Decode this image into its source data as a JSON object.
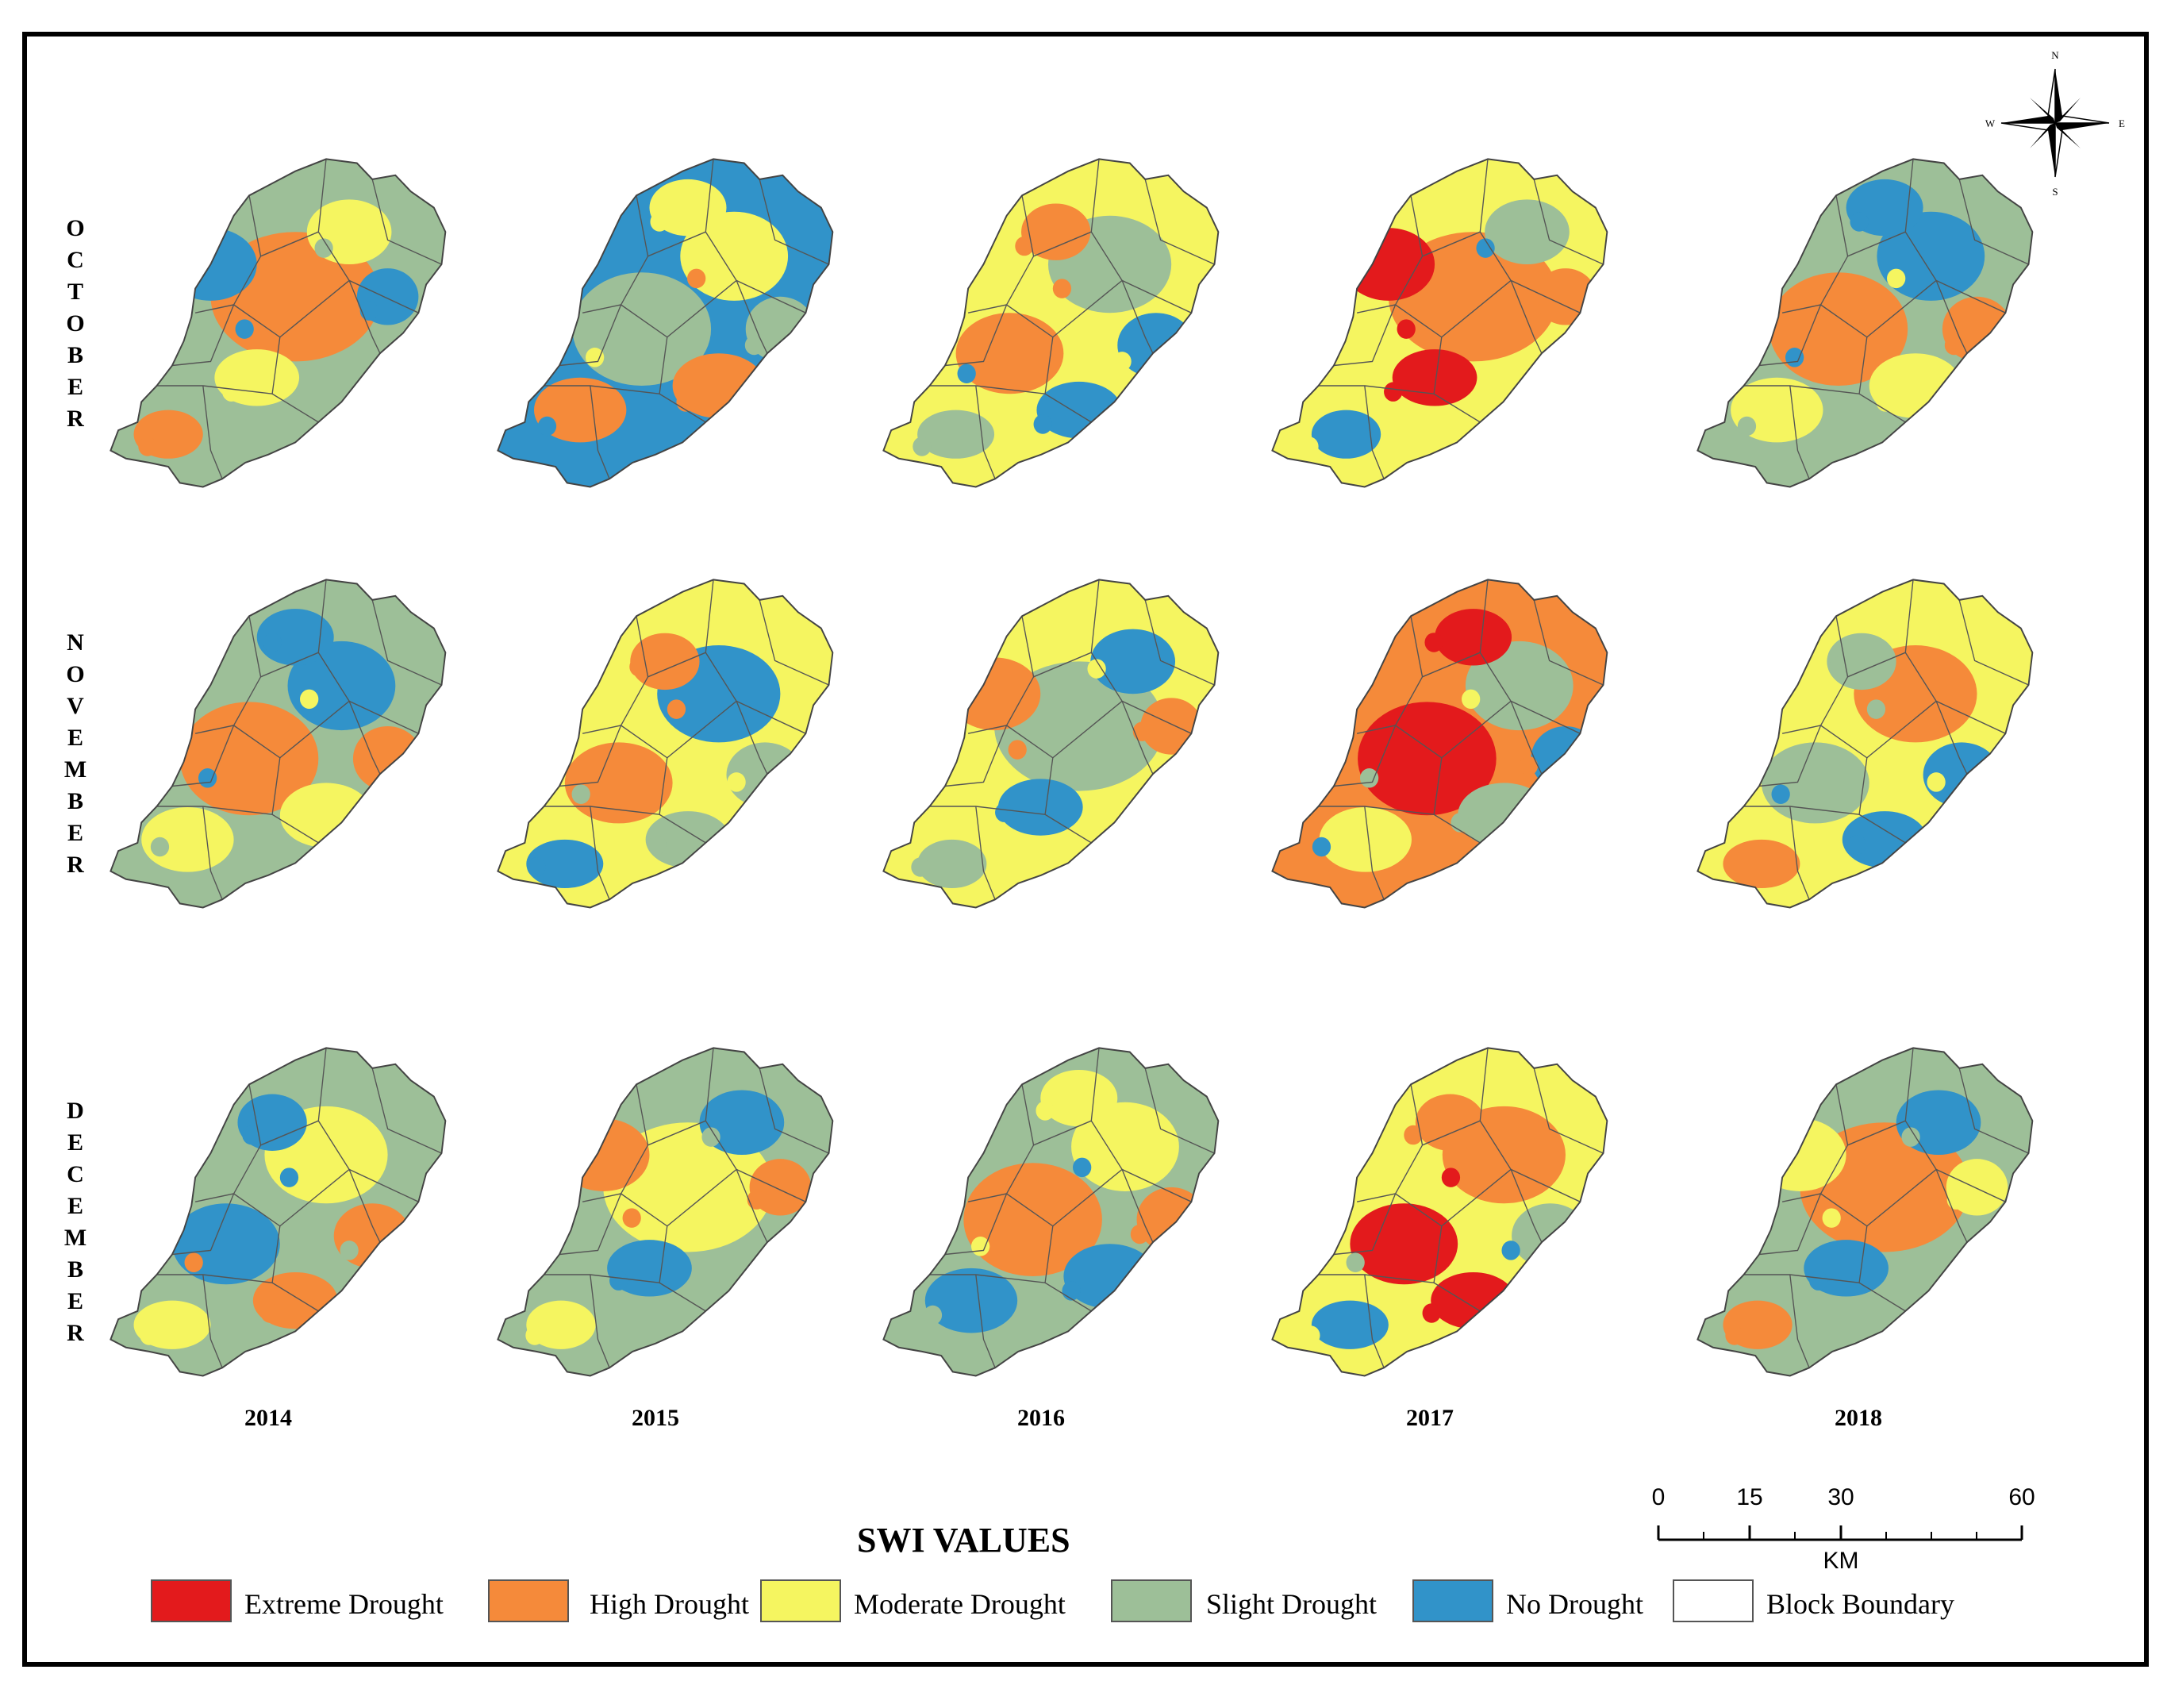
{
  "rows": [
    {
      "label": [
        "O",
        "C",
        "T",
        "O",
        "B",
        "E",
        "R"
      ],
      "month": "OCTOBER"
    },
    {
      "label": [
        "N",
        "O",
        "V",
        "E",
        "M",
        "B",
        "E",
        "R"
      ],
      "month": "NOVEMBER"
    },
    {
      "label": [
        "D",
        "E",
        "C",
        "E",
        "M",
        "B",
        "E",
        "R"
      ],
      "month": "DECEMBER"
    }
  ],
  "years": [
    "2014",
    "2015",
    "2016",
    "2017",
    "2018"
  ],
  "legend": {
    "title": "SWI  VALUES",
    "items": [
      {
        "label": "Extreme Drought",
        "color": "#e31a1c"
      },
      {
        "label": "High Drought",
        "color": "#f58a3a"
      },
      {
        "label": "Moderate Drought",
        "color": "#f5f560"
      },
      {
        "label": "Slight Drought",
        "color": "#9dbf98"
      },
      {
        "label": "No Drought",
        "color": "#3193c9"
      },
      {
        "label": "Block Boundary",
        "color": "#ffffff"
      }
    ]
  },
  "scale": {
    "ticks": [
      "0",
      "15",
      "30",
      "60"
    ],
    "unit": "KM"
  },
  "compass": {
    "n": "N",
    "s": "S",
    "e": "E",
    "w": "W"
  },
  "drought_levels": {
    "OCTOBER": {
      "2014": [
        "slight",
        "high",
        "no",
        "moderate"
      ],
      "2015": [
        "no",
        "slight",
        "moderate",
        "high"
      ],
      "2016": [
        "moderate",
        "slight",
        "high",
        "no"
      ],
      "2017": [
        "moderate",
        "high",
        "extreme",
        "slight",
        "no"
      ],
      "2018": [
        "slight",
        "high",
        "no",
        "moderate"
      ]
    },
    "NOVEMBER": {
      "2014": [
        "slight",
        "high",
        "no",
        "moderate"
      ],
      "2015": [
        "moderate",
        "no",
        "high",
        "slight"
      ],
      "2016": [
        "moderate",
        "slight",
        "high",
        "no"
      ],
      "2017": [
        "high",
        "extreme",
        "slight",
        "moderate",
        "no"
      ],
      "2018": [
        "moderate",
        "high",
        "slight",
        "no"
      ]
    },
    "DECEMBER": {
      "2014": [
        "slight",
        "moderate",
        "no",
        "high"
      ],
      "2015": [
        "slight",
        "moderate",
        "high",
        "no"
      ],
      "2016": [
        "slight",
        "high",
        "moderate",
        "no"
      ],
      "2017": [
        "moderate",
        "high",
        "extreme",
        "slight",
        "no"
      ],
      "2018": [
        "slight",
        "high",
        "moderate",
        "no"
      ]
    }
  }
}
